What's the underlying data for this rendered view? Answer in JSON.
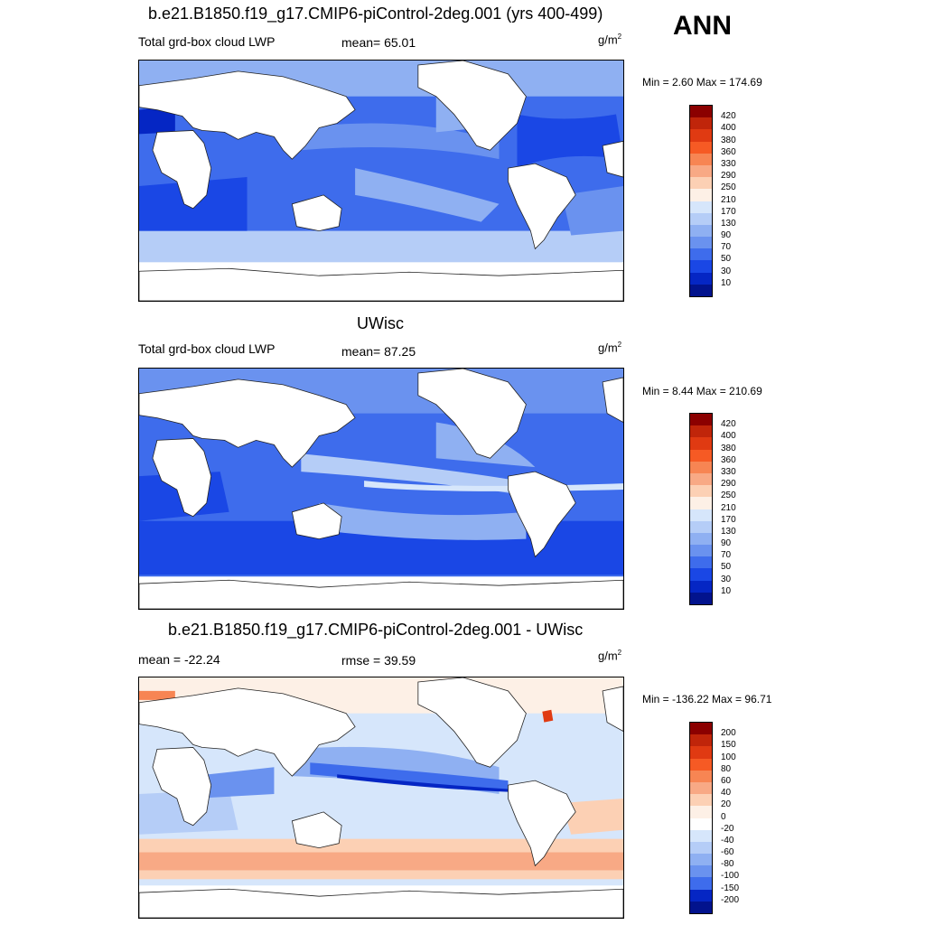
{
  "season": "ANN",
  "panels": [
    {
      "title": "b.e21.B1850.f19_g17.CMIP6-piControl-2deg.001 (yrs 400-499)",
      "left_label": "Total grd-box cloud LWP",
      "stat_label": "mean=  65.01",
      "units": "g/m",
      "units_sup": "2",
      "minmax": "Min =   2.60 Max = 174.69",
      "colorbar": {
        "labels": [
          "420",
          "400",
          "380",
          "360",
          "330",
          "290",
          "250",
          "210",
          "170",
          "130",
          "90",
          "70",
          "50",
          "30",
          "10"
        ],
        "colors": [
          "#8b0000",
          "#c0250a",
          "#e03a12",
          "#f65a24",
          "#f78553",
          "#f8a985",
          "#fcd0b4",
          "#fdf0e6",
          "#d6e6fb",
          "#b5cdf7",
          "#8fb0f2",
          "#6a92ef",
          "#3e6cec",
          "#1a47e5",
          "#0526c4",
          "#02138d"
        ]
      }
    },
    {
      "title": "UWisc",
      "left_label": "Total grd-box cloud LWP",
      "stat_label": "mean=  87.25",
      "units": "g/m",
      "units_sup": "2",
      "minmax": "Min =   8.44 Max = 210.69",
      "colorbar": {
        "labels": [
          "420",
          "400",
          "380",
          "360",
          "330",
          "290",
          "250",
          "210",
          "170",
          "130",
          "90",
          "70",
          "50",
          "30",
          "10"
        ],
        "colors": [
          "#8b0000",
          "#c0250a",
          "#e03a12",
          "#f65a24",
          "#f78553",
          "#f8a985",
          "#fcd0b4",
          "#fdf0e6",
          "#d6e6fb",
          "#b5cdf7",
          "#8fb0f2",
          "#6a92ef",
          "#3e6cec",
          "#1a47e5",
          "#0526c4",
          "#02138d"
        ]
      }
    },
    {
      "title": "b.e21.B1850.f19_g17.CMIP6-piControl-2deg.001 - UWisc",
      "left_label": "mean = -22.24",
      "stat_label": "rmse =  39.59",
      "units": "g/m",
      "units_sup": "2",
      "minmax": "Min = -136.22 Max =  96.71",
      "colorbar": {
        "labels": [
          "200",
          "150",
          "100",
          "80",
          "60",
          "40",
          "20",
          "0",
          "-20",
          "-40",
          "-60",
          "-80",
          "-100",
          "-150",
          "-200"
        ],
        "colors": [
          "#8b0000",
          "#c0250a",
          "#e03a12",
          "#f65a24",
          "#f78553",
          "#f8a985",
          "#fcd0b4",
          "#fdf0e6",
          "#ffffff",
          "#d6e6fb",
          "#b5cdf7",
          "#8fb0f2",
          "#6a92ef",
          "#3e6cec",
          "#0526c4",
          "#02138d"
        ]
      }
    }
  ]
}
